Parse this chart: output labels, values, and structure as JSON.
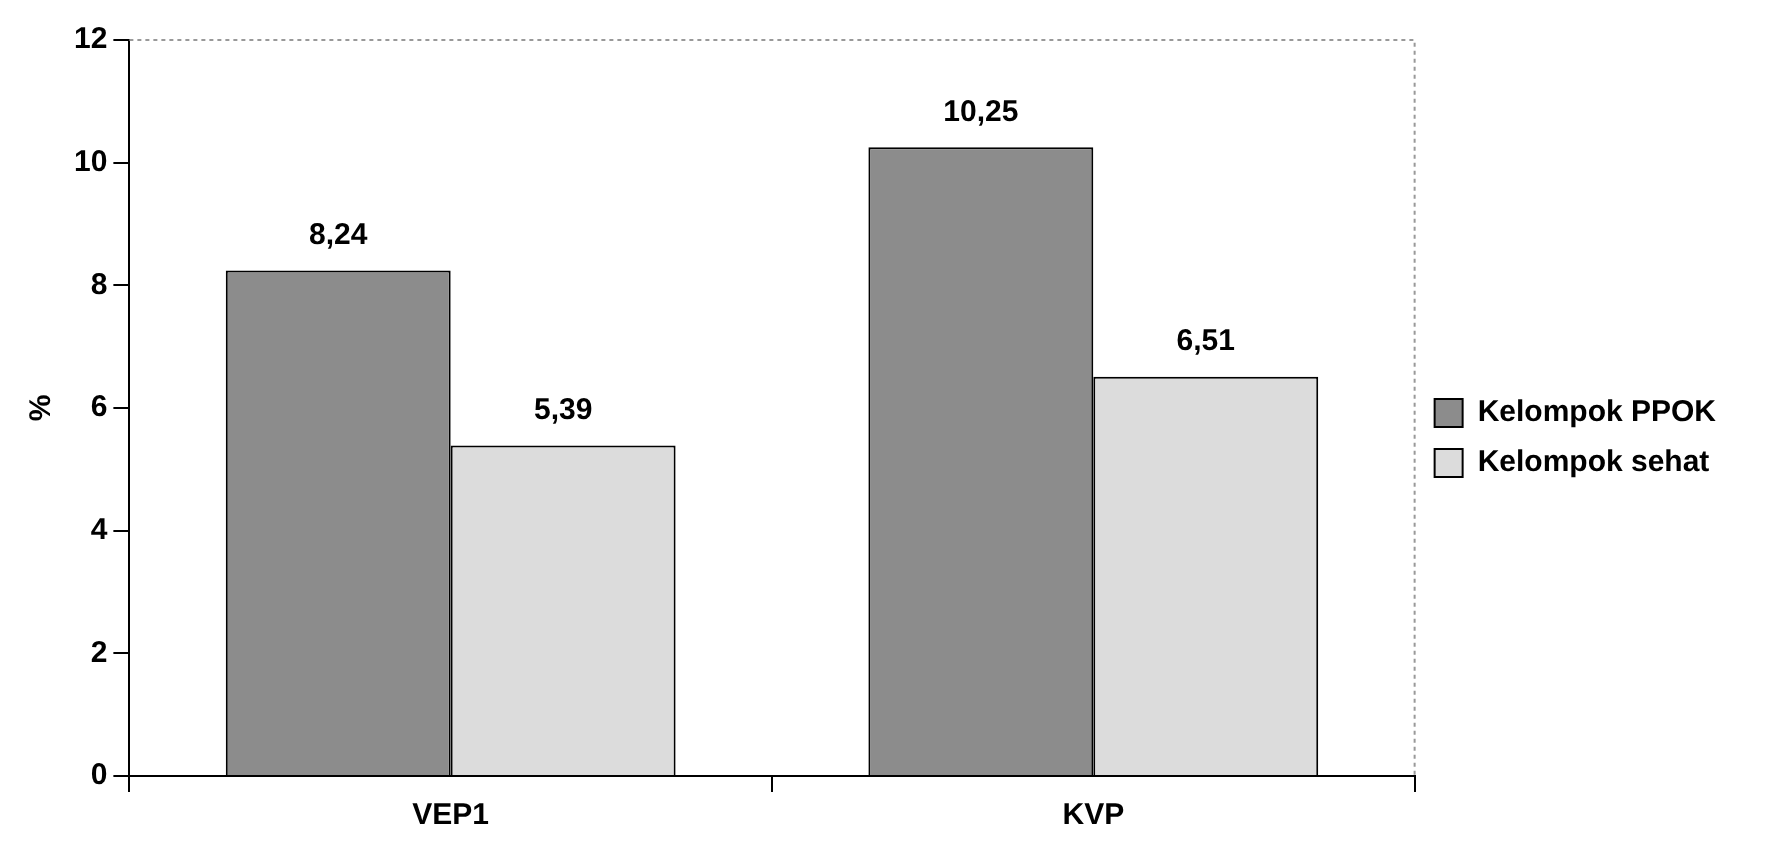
{
  "chart_data": {
    "type": "bar",
    "ylabel": "%",
    "categories": [
      "VEP1",
      "KVP"
    ],
    "series": [
      {
        "name": "Kelompok PPOK",
        "color": "#8c8c8c",
        "values": [
          8.24,
          10.25
        ],
        "value_labels": [
          "8,24",
          "10,25"
        ]
      },
      {
        "name": "Kelompok sehat",
        "color": "#dcdcdc",
        "values": [
          5.39,
          6.51
        ],
        "value_labels": [
          "5,39",
          "6,51"
        ]
      }
    ],
    "ylim": [
      0,
      12
    ],
    "yticks": [
      0,
      2,
      4,
      6,
      8,
      10,
      12
    ],
    "grid": false,
    "legend": "right"
  }
}
